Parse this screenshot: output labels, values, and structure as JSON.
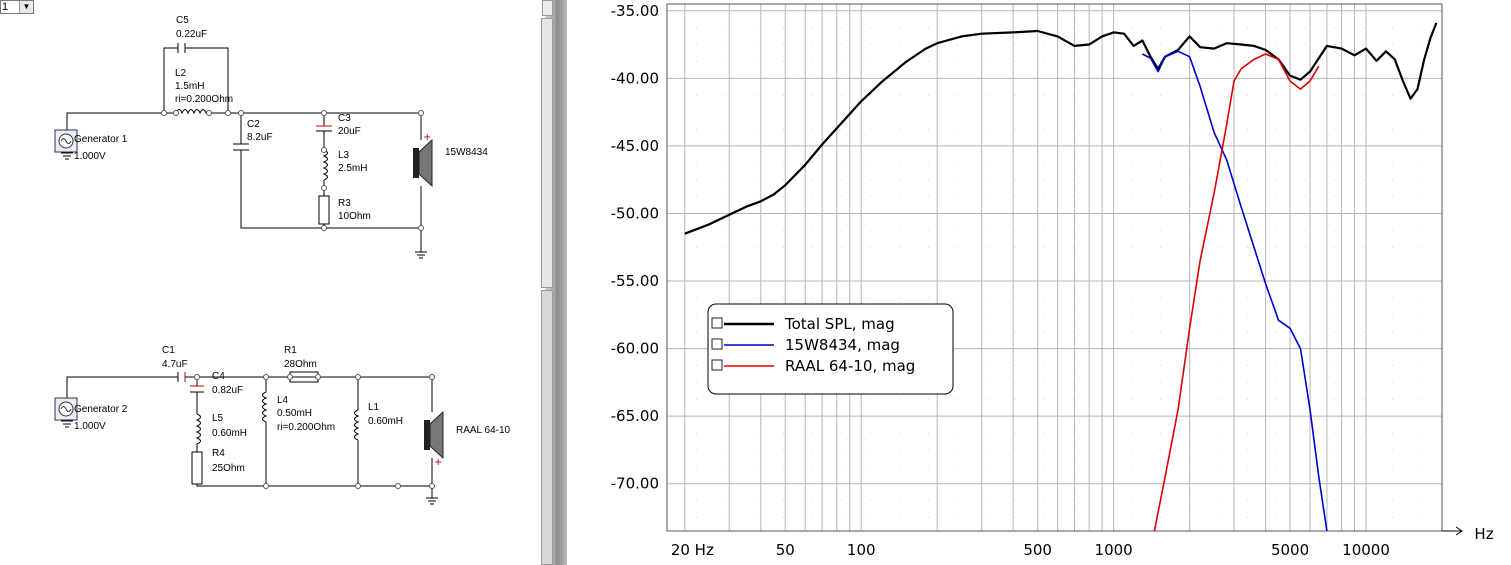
{
  "view_selector": {
    "value": "1"
  },
  "schematic": {
    "gen1": {
      "name": "Generator 1",
      "value": "1.000V"
    },
    "gen2": {
      "name": "Generator 2",
      "value": "1.000V"
    },
    "C5": {
      "name": "C5",
      "value": "0.22uF"
    },
    "L2": {
      "name": "L2",
      "value": "1.5mH",
      "ri": "ri=0.200Ohm"
    },
    "C2": {
      "name": "C2",
      "value": "8.2uF"
    },
    "C3": {
      "name": "C3",
      "value": "20uF"
    },
    "L3": {
      "name": "L3",
      "value": "2.5mH"
    },
    "R3": {
      "name": "R3",
      "value": "10Ohm"
    },
    "woofer": {
      "name": "15W8434"
    },
    "C1": {
      "name": "C1",
      "value": "4.7uF"
    },
    "C4": {
      "name": "C4",
      "value": "0.82uF"
    },
    "L5": {
      "name": "L5",
      "value": "0.60mH"
    },
    "R4": {
      "name": "R4",
      "value": "25Ohm"
    },
    "R1": {
      "name": "R1",
      "value": "28Ohm"
    },
    "L4": {
      "name": "L4",
      "value": "0.50mH",
      "ri": "ri=0.200Ohm"
    },
    "L1": {
      "name": "L1",
      "value": "0.60mH"
    },
    "tweeter": {
      "name": "RAAL 64-10"
    }
  },
  "chart_data": {
    "type": "line",
    "x_scale": "log",
    "xlim": [
      17,
      20000
    ],
    "ylim": [
      -73.5,
      -34.5
    ],
    "x_unit": "Hz",
    "x_ticks": [
      20,
      50,
      100,
      500,
      1000,
      5000,
      10000
    ],
    "x_tick_labels": [
      "20 Hz",
      "50",
      "100",
      "500",
      "1000",
      "5000",
      "10000"
    ],
    "y_ticks": [
      -35,
      -40,
      -45,
      -50,
      -55,
      -60,
      -65,
      -70
    ],
    "y_tick_labels": [
      "-35.00",
      "-40.00",
      "-45.00",
      "-50.00",
      "-55.00",
      "-60.00",
      "-65.00",
      "-70.00"
    ],
    "grid": true,
    "legend_position": "lower-left",
    "series": [
      {
        "name": "Total SPL, mag",
        "color": "#000000",
        "points": [
          [
            20,
            -51.5
          ],
          [
            25,
            -50.8
          ],
          [
            30,
            -50.1
          ],
          [
            35,
            -49.5
          ],
          [
            40,
            -49.1
          ],
          [
            45,
            -48.6
          ],
          [
            50,
            -47.9
          ],
          [
            60,
            -46.4
          ],
          [
            70,
            -44.9
          ],
          [
            80,
            -43.7
          ],
          [
            100,
            -41.7
          ],
          [
            120,
            -40.3
          ],
          [
            150,
            -38.8
          ],
          [
            180,
            -37.8
          ],
          [
            200,
            -37.4
          ],
          [
            250,
            -36.9
          ],
          [
            300,
            -36.7
          ],
          [
            400,
            -36.6
          ],
          [
            500,
            -36.5
          ],
          [
            600,
            -36.9
          ],
          [
            700,
            -37.6
          ],
          [
            800,
            -37.5
          ],
          [
            900,
            -36.9
          ],
          [
            1000,
            -36.6
          ],
          [
            1100,
            -36.7
          ],
          [
            1200,
            -37.6
          ],
          [
            1300,
            -37.2
          ],
          [
            1400,
            -38.4
          ],
          [
            1500,
            -39.3
          ],
          [
            1600,
            -38.4
          ],
          [
            1800,
            -37.9
          ],
          [
            2000,
            -36.9
          ],
          [
            2200,
            -37.7
          ],
          [
            2500,
            -37.8
          ],
          [
            2800,
            -37.4
          ],
          [
            3200,
            -37.5
          ],
          [
            3600,
            -37.6
          ],
          [
            4000,
            -37.9
          ],
          [
            4500,
            -38.6
          ],
          [
            5000,
            -39.8
          ],
          [
            5500,
            -40.1
          ],
          [
            6000,
            -39.5
          ],
          [
            7000,
            -37.6
          ],
          [
            8000,
            -37.8
          ],
          [
            9000,
            -38.3
          ],
          [
            10000,
            -37.8
          ],
          [
            11000,
            -38.7
          ],
          [
            12000,
            -38.0
          ],
          [
            13000,
            -38.6
          ],
          [
            14000,
            -40.2
          ],
          [
            15000,
            -41.5
          ],
          [
            16000,
            -40.8
          ],
          [
            17000,
            -38.6
          ],
          [
            18000,
            -37.0
          ],
          [
            19000,
            -35.9
          ]
        ]
      },
      {
        "name": "15W8434, mag",
        "color": "#0000cc",
        "points": [
          [
            1300,
            -38.2
          ],
          [
            1400,
            -38.5
          ],
          [
            1500,
            -39.5
          ],
          [
            1600,
            -38.4
          ],
          [
            1800,
            -38.0
          ],
          [
            2000,
            -38.4
          ],
          [
            2200,
            -40.6
          ],
          [
            2500,
            -44.0
          ],
          [
            2800,
            -46.0
          ],
          [
            3200,
            -49.5
          ],
          [
            3600,
            -52.5
          ],
          [
            4000,
            -55.2
          ],
          [
            4500,
            -57.9
          ],
          [
            5000,
            -58.5
          ],
          [
            5500,
            -60.0
          ],
          [
            6000,
            -64.5
          ],
          [
            6500,
            -69.5
          ],
          [
            7000,
            -73.5
          ]
        ]
      },
      {
        "name": "RAAL 64-10, mag",
        "color": "#dd0000",
        "points": [
          [
            1450,
            -73.5
          ],
          [
            1600,
            -69.5
          ],
          [
            1800,
            -64.5
          ],
          [
            2000,
            -58.5
          ],
          [
            2200,
            -53.5
          ],
          [
            2500,
            -48.5
          ],
          [
            2800,
            -43.5
          ],
          [
            3000,
            -40.2
          ],
          [
            3200,
            -39.3
          ],
          [
            3600,
            -38.6
          ],
          [
            4000,
            -38.2
          ],
          [
            4500,
            -38.6
          ],
          [
            5000,
            -40.2
          ],
          [
            5500,
            -40.8
          ],
          [
            6000,
            -40.2
          ],
          [
            6500,
            -39.1
          ]
        ]
      }
    ]
  }
}
